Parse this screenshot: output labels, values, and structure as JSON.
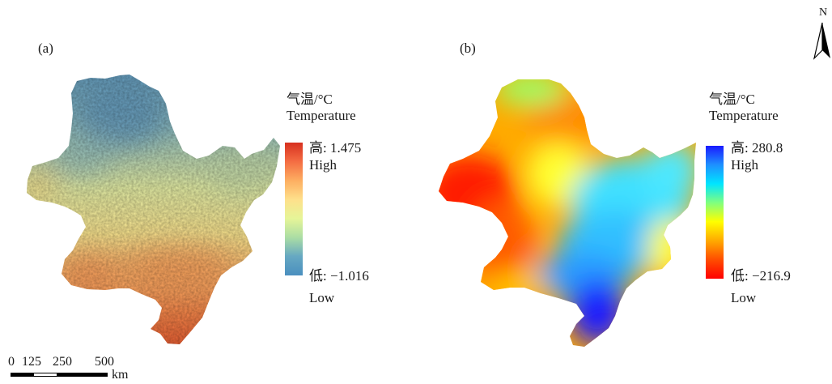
{
  "panels": [
    {
      "label": "(a)",
      "legend_title_cn": "气温/°C",
      "legend_title_en": "Temperature",
      "high_prefix": "高: ",
      "high_value": "1.475",
      "high_word": "High",
      "low_prefix": "低: ",
      "low_value": "−1.016",
      "low_word": "Low",
      "colors": [
        "#d7301f",
        "#f46d43",
        "#fdae61",
        "#fee08b",
        "#e6f598",
        "#abdda4",
        "#66a8c2",
        "#4a8fbf"
      ]
    },
    {
      "label": "(b)",
      "legend_title_cn": "气温/°C",
      "legend_title_en": "Temperature",
      "high_prefix": "高: ",
      "high_value": "280.8",
      "high_word": "High",
      "low_prefix": "低: ",
      "low_value": "−216.9",
      "low_word": "Low",
      "colors": [
        "#1a1aff",
        "#1e90ff",
        "#00e5ff",
        "#7fff7f",
        "#ffff00",
        "#ffaa00",
        "#ff4d00",
        "#ff0000"
      ]
    }
  ],
  "north_arrow": {
    "label": "N"
  },
  "scale_bar": {
    "ticks": [
      "0",
      "125",
      "250",
      "500"
    ],
    "unit": "km"
  }
}
